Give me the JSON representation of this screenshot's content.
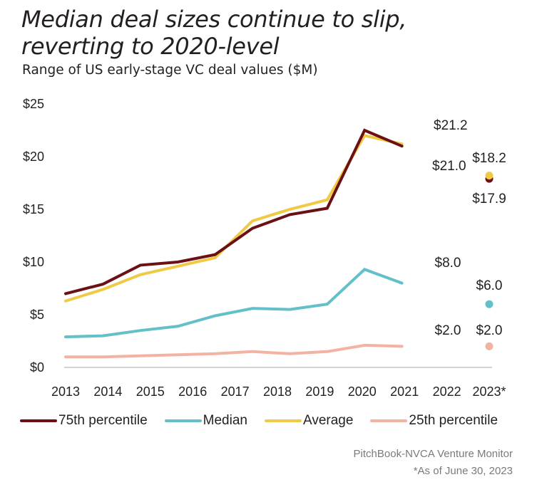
{
  "chart_data": {
    "type": "line",
    "title": "Median deal sizes continue to slip, reverting to 2020-level",
    "subtitle": "Range of US early-stage VC deal values ($M)",
    "xlabel": "",
    "ylabel": "",
    "categories": [
      "2013",
      "2014",
      "2015",
      "2016",
      "2017",
      "2018",
      "2019",
      "2020",
      "2021",
      "2022",
      "2023*"
    ],
    "ylim": [
      0,
      25
    ],
    "yticks": [
      0,
      5,
      10,
      15,
      20,
      25
    ],
    "ytick_labels": [
      "$0",
      "$5",
      "$10",
      "$15",
      "$20",
      "$25"
    ],
    "grid": false,
    "legend_position": "bottom",
    "series": [
      {
        "name": "75th percentile",
        "color": "#6b1014",
        "values": [
          7.0,
          7.9,
          9.7,
          10.0,
          10.7,
          13.2,
          14.5,
          15.1,
          22.5,
          21.0,
          17.9
        ]
      },
      {
        "name": "Median",
        "color": "#64c0c8",
        "values": [
          2.9,
          3.0,
          3.5,
          3.9,
          4.9,
          5.6,
          5.5,
          6.0,
          9.3,
          8.0,
          6.0
        ]
      },
      {
        "name": "Average",
        "color": "#f0c945",
        "values": [
          6.3,
          7.4,
          8.8,
          9.6,
          10.4,
          13.9,
          15.0,
          15.9,
          22.0,
          21.2,
          18.2
        ]
      },
      {
        "name": "25th percentile",
        "color": "#f4b3a2",
        "values": [
          1.0,
          1.0,
          1.1,
          1.2,
          1.3,
          1.5,
          1.3,
          1.5,
          2.1,
          2.0,
          2.0
        ]
      }
    ],
    "annotations": [
      {
        "series": "Average",
        "category": "2022",
        "text": "$21.2"
      },
      {
        "series": "75th percentile",
        "category": "2022",
        "text": "$21.0"
      },
      {
        "series": "Average",
        "category": "2023*",
        "text": "$18.2"
      },
      {
        "series": "75th percentile",
        "category": "2023*",
        "text": "$17.9"
      },
      {
        "series": "Median",
        "category": "2022",
        "text": "$8.0"
      },
      {
        "series": "Median",
        "category": "2023*",
        "text": "$6.0"
      },
      {
        "series": "25th percentile",
        "category": "2022",
        "text": "$2.0"
      },
      {
        "series": "25th percentile",
        "category": "2023*",
        "text": "$2.0"
      }
    ],
    "note": "2023* shown as standalone points (not connected to line)"
  },
  "footer": {
    "source": "PitchBook-NVCA Venture Monitor",
    "footnote": "*As of June 30, 2023"
  }
}
